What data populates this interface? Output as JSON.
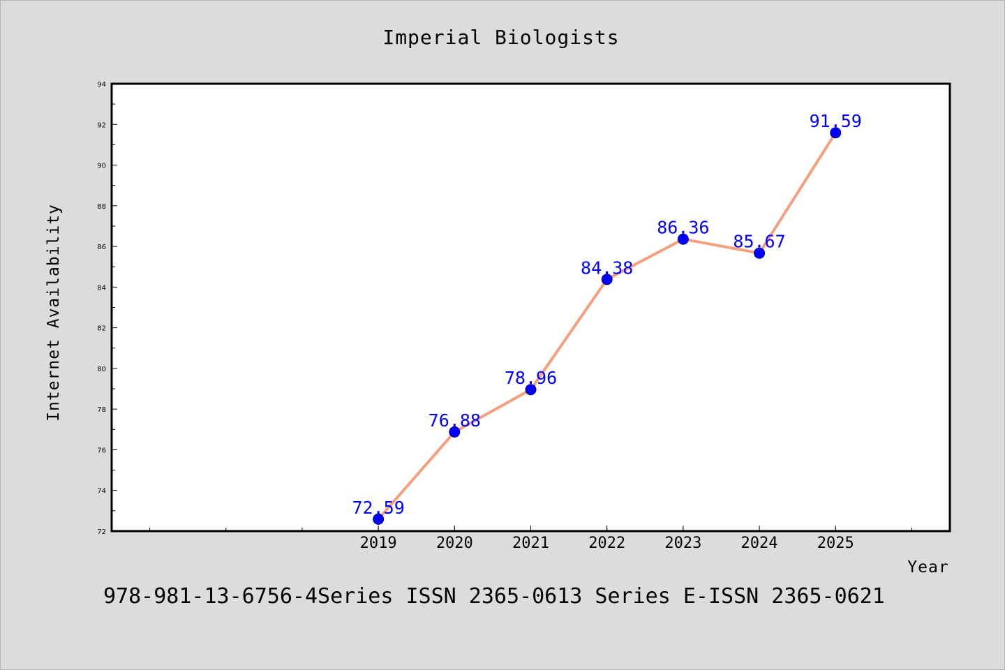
{
  "chart_data": {
    "type": "line",
    "title": "Imperial Biologists",
    "xlabel": "Year",
    "ylabel": "Internet Availability",
    "categories": [
      "2019",
      "2020",
      "2021",
      "2022",
      "2023",
      "2024",
      "2025"
    ],
    "values": [
      72.59,
      76.88,
      78.96,
      84.38,
      86.36,
      85.67,
      91.59
    ],
    "value_labels": [
      "72.59",
      "76.88",
      "78.96",
      "84.38",
      "86.36",
      "85.67",
      "91.59"
    ],
    "ylim": [
      72,
      94
    ],
    "yticks": [
      72,
      74,
      76,
      78,
      80,
      82,
      84,
      86,
      88,
      90,
      92,
      94
    ],
    "xlim": [
      2015.5,
      2026.5
    ],
    "grid": false,
    "colors": {
      "line": "#f4a07f",
      "marker_fill": "#0000ff",
      "marker_stroke": "#00008b",
      "data_label": "#0000ff",
      "background": "#dcdcdc",
      "plot_background": "#ffffff"
    }
  },
  "footer": {
    "text": "978-981-13-6756-4Series ISSN 2365-0613 Series E-ISSN 2365-0621"
  }
}
